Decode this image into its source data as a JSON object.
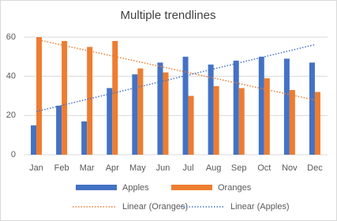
{
  "chart_data": {
    "type": "bar",
    "title": "Multiple trendlines",
    "categories": [
      "Jan",
      "Feb",
      "Mar",
      "Apr",
      "May",
      "Jun",
      "Jul",
      "Aug",
      "Sep",
      "Oct",
      "Nov",
      "Dec"
    ],
    "series": [
      {
        "name": "Apples",
        "color": "#4472c4",
        "values": [
          15,
          25,
          17,
          34,
          41,
          47,
          50,
          46,
          48,
          50,
          49,
          47
        ]
      },
      {
        "name": "Oranges",
        "color": "#ed7d31",
        "values": [
          60,
          58,
          55,
          58,
          44,
          42,
          30,
          35,
          34,
          39,
          33,
          32
        ]
      }
    ],
    "trendlines": [
      {
        "name": "Linear (Oranges)",
        "series": 1,
        "color": "#ed7d31"
      },
      {
        "name": "Linear (Apples)",
        "series": 0,
        "color": "#4472c4"
      }
    ],
    "ylim": [
      0,
      60
    ],
    "yticks": [
      0,
      20,
      40,
      60
    ],
    "grid": true
  }
}
